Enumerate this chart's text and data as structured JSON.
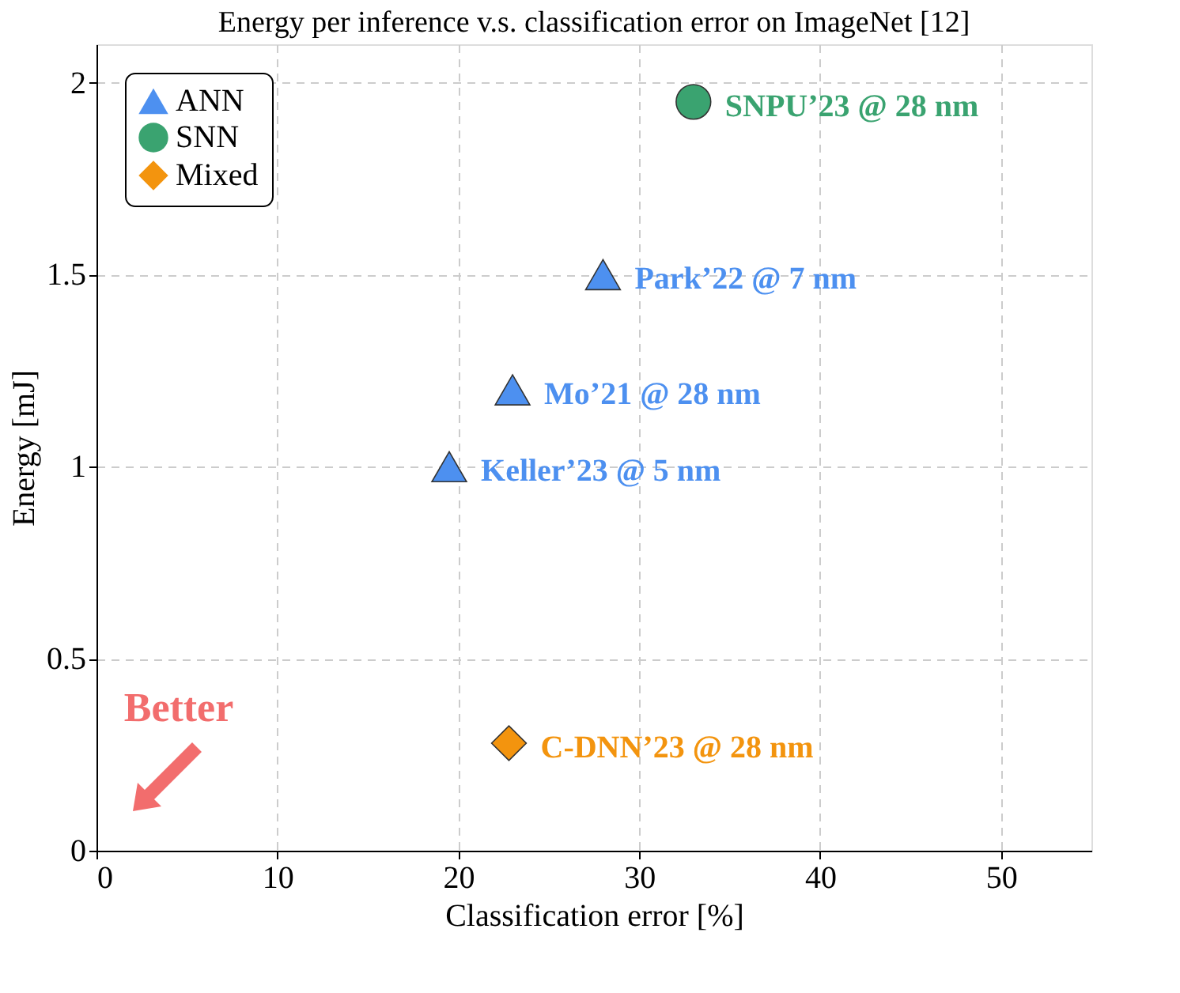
{
  "chart_data": {
    "type": "scatter",
    "title": "Energy per inference v.s. classification error on ImageNet [12]",
    "xlabel": "Classification error [%]",
    "ylabel": "Energy [mJ]",
    "xlim": [
      0,
      55
    ],
    "ylim": [
      0,
      2.1
    ],
    "xticks": [
      0,
      10,
      20,
      30,
      40,
      50
    ],
    "yticks": [
      0,
      0.5,
      1,
      1.5,
      2
    ],
    "grid": true,
    "legend": "top left",
    "series": [
      {
        "name": "ANN",
        "color": "#4d90f0",
        "marker": "triangle",
        "x": [
          19.5,
          23.0,
          28.0
        ],
        "values": [
          1.0,
          1.2,
          1.5
        ]
      },
      {
        "name": "SNN",
        "color": "#3aa370",
        "marker": "circle",
        "x": [
          33.0
        ],
        "values": [
          1.95
        ]
      },
      {
        "name": "Mixed",
        "color": "#f3940e",
        "marker": "diamond",
        "x": [
          22.8
        ],
        "values": [
          0.28
        ]
      }
    ],
    "annotations": [
      {
        "text": "Keller’23 @ 5 nm",
        "x": 19.5,
        "y": 1.0
      },
      {
        "text": "Mo’21 @ 28 nm",
        "x": 23.0,
        "y": 1.2
      },
      {
        "text": "Park’22 @ 7 nm",
        "x": 28.0,
        "y": 1.5
      },
      {
        "text": "SNPU’23 @ 28 nm",
        "x": 33.0,
        "y": 1.95
      },
      {
        "text": "C-DNN’23 @ 28 nm",
        "x": 22.8,
        "y": 0.28
      },
      "Better"
    ]
  }
}
